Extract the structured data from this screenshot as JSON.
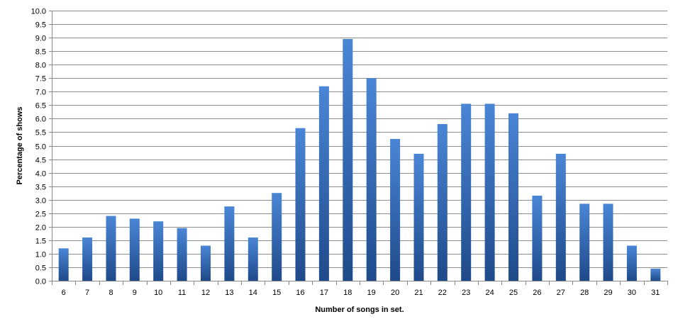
{
  "chart_data": {
    "type": "bar",
    "title": "",
    "xlabel": "Number of songs in set.",
    "ylabel": "Percentage of shows",
    "ylim": [
      0,
      10
    ],
    "ytick_step": 0.5,
    "yticks": [
      "0.0",
      "0.5",
      "1.0",
      "1.5",
      "2.0",
      "2.5",
      "3.0",
      "3.5",
      "4.0",
      "4.5",
      "5.0",
      "5.5",
      "6.0",
      "6.5",
      "7.0",
      "7.5",
      "8.0",
      "8.5",
      "9.0",
      "9.5",
      "10.0"
    ],
    "grid": true,
    "legend": "none",
    "bar_color": "#3a6fc0",
    "bar_color_dark": "#1f4a8a",
    "categories": [
      "6",
      "7",
      "8",
      "9",
      "10",
      "11",
      "12",
      "13",
      "14",
      "15",
      "16",
      "17",
      "18",
      "19",
      "20",
      "21",
      "22",
      "23",
      "24",
      "25",
      "26",
      "27",
      "28",
      "29",
      "30",
      "31"
    ],
    "values": [
      1.2,
      1.6,
      2.4,
      2.3,
      2.2,
      1.95,
      1.3,
      2.75,
      1.6,
      3.25,
      5.65,
      7.2,
      8.95,
      7.5,
      5.25,
      4.7,
      5.8,
      6.55,
      6.55,
      6.2,
      3.15,
      4.7,
      2.85,
      2.85,
      1.3,
      0.45
    ]
  }
}
